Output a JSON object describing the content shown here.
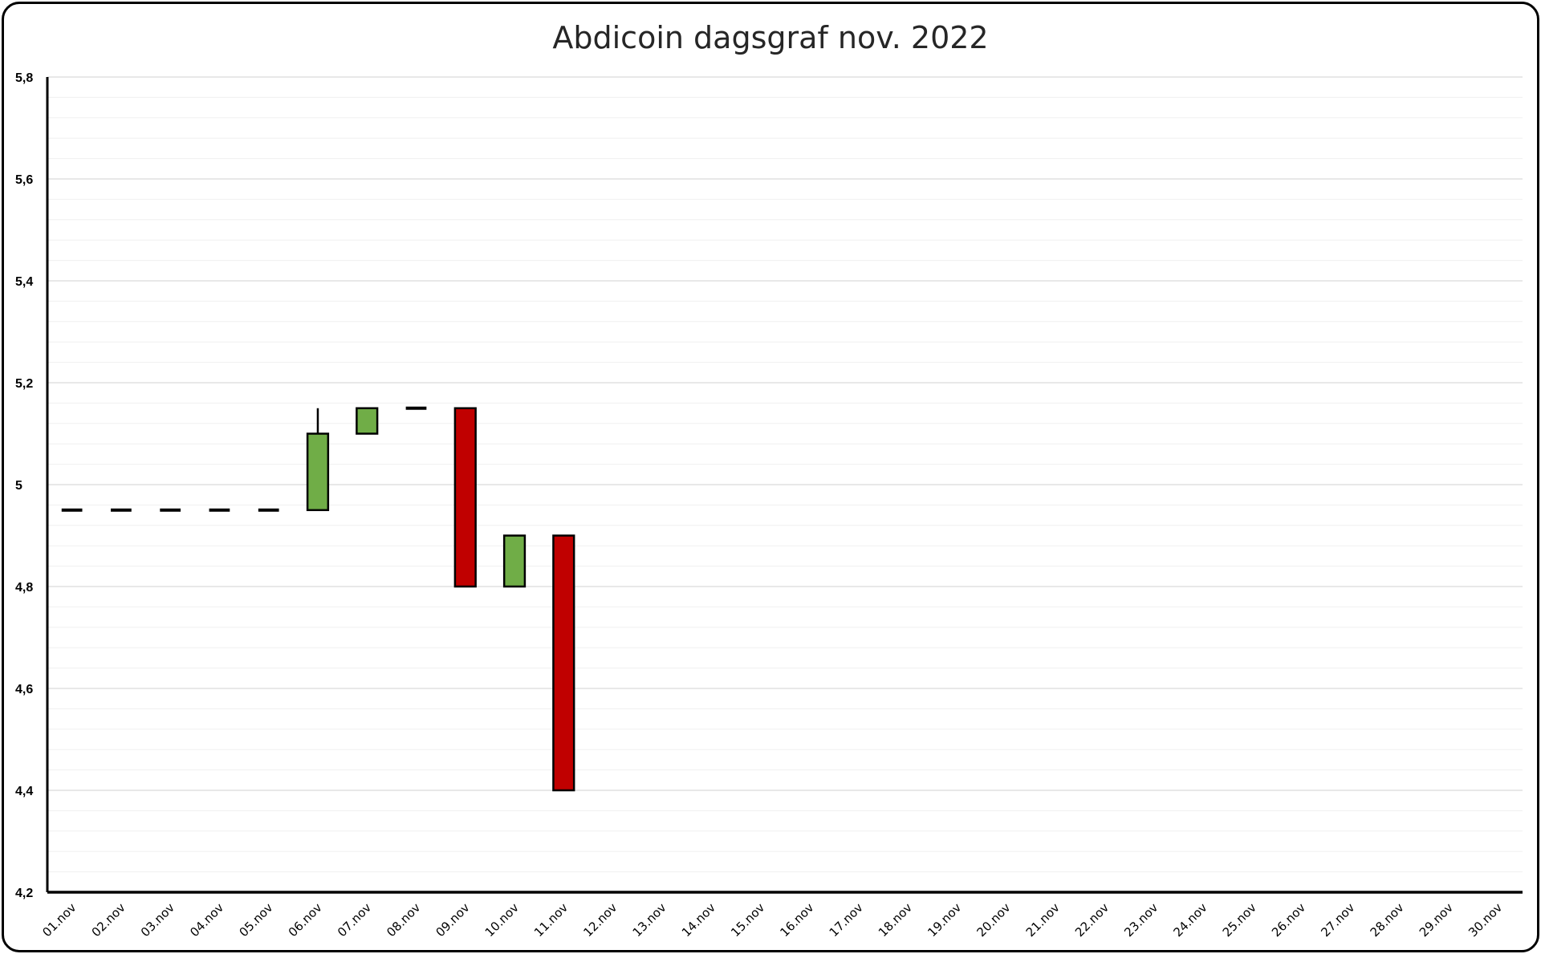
{
  "chart_data": {
    "type": "candlestick",
    "title": "Abdicoin dagsgraf nov. 2022",
    "xlabel": "",
    "ylabel": "",
    "ylim": [
      4.2,
      5.8
    ],
    "y_ticks": [
      4.2,
      4.4,
      4.6,
      4.8,
      5,
      5.2,
      5.4,
      5.6,
      5.8
    ],
    "y_tick_labels": [
      "4,2",
      "4,4",
      "4,6",
      "4,8",
      "5",
      "5,2",
      "5,4",
      "5,6",
      "5,8"
    ],
    "y_minor_step": 0.04,
    "grid": true,
    "legend": "none",
    "categories": [
      "01.nov",
      "02.nov",
      "03.nov",
      "04.nov",
      "05.nov",
      "06.nov",
      "07.nov",
      "08.nov",
      "09.nov",
      "10.nov",
      "11.nov",
      "12.nov",
      "13.nov",
      "14.nov",
      "15.nov",
      "16.nov",
      "17.nov",
      "18.nov",
      "19.nov",
      "20.nov",
      "21.nov",
      "22.nov",
      "23.nov",
      "24.nov",
      "25.nov",
      "26.nov",
      "27.nov",
      "28.nov",
      "29.nov",
      "30.nov"
    ],
    "candles": [
      {
        "date": "01.nov",
        "open": 4.95,
        "high": 4.95,
        "low": 4.95,
        "close": 4.95
      },
      {
        "date": "02.nov",
        "open": 4.95,
        "high": 4.95,
        "low": 4.95,
        "close": 4.95
      },
      {
        "date": "03.nov",
        "open": 4.95,
        "high": 4.95,
        "low": 4.95,
        "close": 4.95
      },
      {
        "date": "04.nov",
        "open": 4.95,
        "high": 4.95,
        "low": 4.95,
        "close": 4.95
      },
      {
        "date": "05.nov",
        "open": 4.95,
        "high": 4.95,
        "low": 4.95,
        "close": 4.95
      },
      {
        "date": "06.nov",
        "open": 4.95,
        "high": 5.15,
        "low": 4.95,
        "close": 5.1
      },
      {
        "date": "07.nov",
        "open": 5.1,
        "high": 5.15,
        "low": 5.1,
        "close": 5.15
      },
      {
        "date": "08.nov",
        "open": 5.15,
        "high": 5.15,
        "low": 5.15,
        "close": 5.15
      },
      {
        "date": "09.nov",
        "open": 5.15,
        "high": 5.15,
        "low": 4.8,
        "close": 4.8
      },
      {
        "date": "10.nov",
        "open": 4.8,
        "high": 4.9,
        "low": 4.8,
        "close": 4.9
      },
      {
        "date": "11.nov",
        "open": 4.9,
        "high": 4.9,
        "low": 4.4,
        "close": 4.4
      }
    ],
    "colors": {
      "up": "#70AD47",
      "down": "#C00000",
      "outline": "#000000",
      "major_grid": "#D9D9D9",
      "minor_grid": "#F0F0F0"
    }
  }
}
